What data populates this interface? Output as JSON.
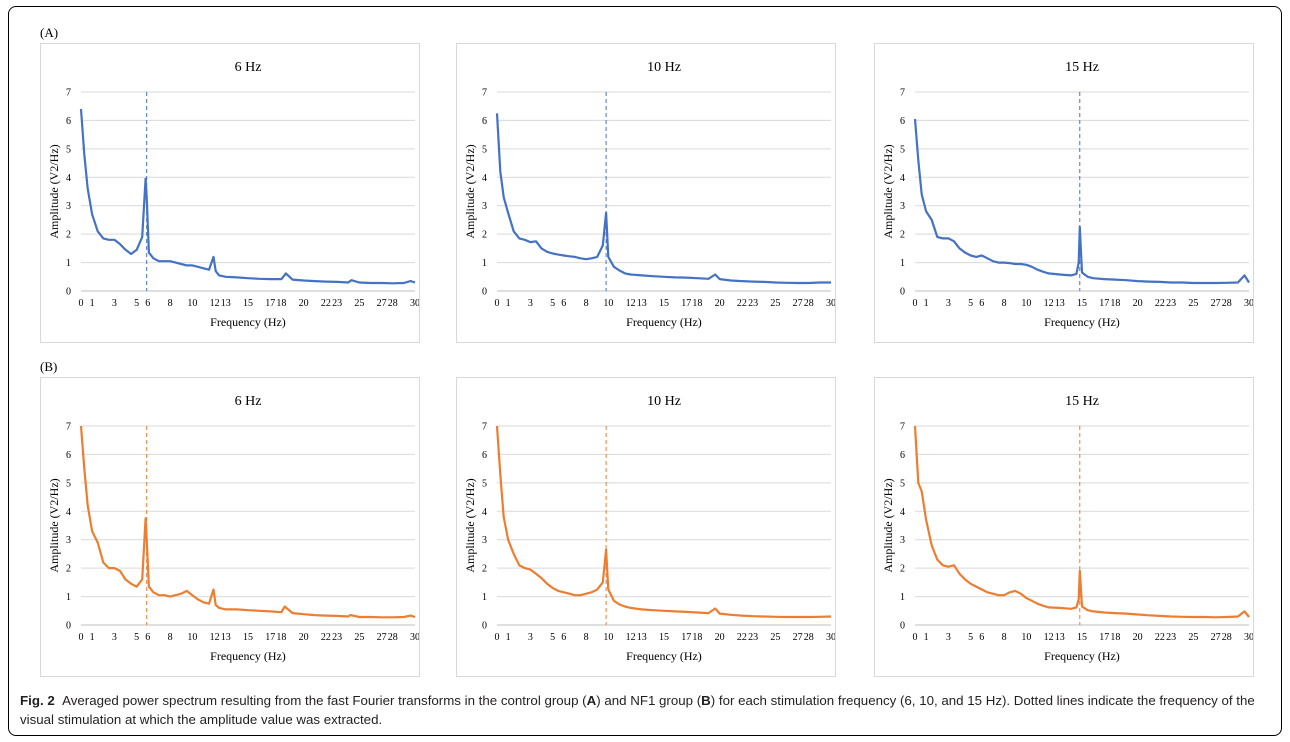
{
  "panel_labels": {
    "A": "(A)",
    "B": "(B)"
  },
  "caption": {
    "fig_label": "Fig. 2",
    "text_1": "Averaged power spectrum resulting from the fast Fourier transforms in the control group (",
    "bold_1": "A",
    "text_2": ") and NF1 group (",
    "bold_2": "B",
    "text_3": ") for each stimulation frequency (6, 10, and 15 Hz). Dotted lines indicate the frequency of the visual stimulation at which the amplitude value was extracted."
  },
  "chart_data": [
    {
      "id": "A-6",
      "type": "line",
      "title": "6 Hz",
      "xlabel": "Frequency (Hz)",
      "ylabel": "Amplitude (V2/Hz)",
      "xlim": [
        0,
        30
      ],
      "ylim": [
        0,
        7
      ],
      "xticks": [
        "0",
        "1",
        "3",
        "5",
        "6",
        "8",
        "10",
        "12",
        "13",
        "15",
        "17",
        "18",
        "20",
        "22",
        "23",
        "25",
        "27",
        "28",
        "30"
      ],
      "yticks": [
        "0",
        "1",
        "2",
        "3",
        "4",
        "5",
        "6",
        "7"
      ],
      "grid": true,
      "color": "#4472c4",
      "marker_x": 5.9,
      "x": [
        0,
        0.3,
        0.6,
        1,
        1.5,
        2,
        2.5,
        3,
        3.5,
        4,
        4.5,
        5,
        5.5,
        5.8,
        5.9,
        6.1,
        6.5,
        7,
        7.5,
        8,
        8.5,
        9,
        9.5,
        10,
        10.5,
        11,
        11.5,
        11.9,
        12.1,
        12.4,
        13,
        14,
        15,
        16,
        17,
        18,
        18.4,
        19,
        20,
        21,
        22,
        23,
        24,
        24.3,
        25,
        26,
        27,
        28,
        29,
        29.6,
        30
      ],
      "y": [
        6.4,
        4.8,
        3.6,
        2.7,
        2.1,
        1.85,
        1.8,
        1.8,
        1.65,
        1.45,
        1.3,
        1.45,
        1.9,
        3.95,
        3.3,
        1.35,
        1.15,
        1.05,
        1.05,
        1.05,
        1.0,
        0.95,
        0.9,
        0.9,
        0.85,
        0.8,
        0.75,
        1.2,
        0.7,
        0.55,
        0.5,
        0.48,
        0.45,
        0.43,
        0.42,
        0.42,
        0.62,
        0.4,
        0.37,
        0.35,
        0.33,
        0.32,
        0.3,
        0.38,
        0.3,
        0.28,
        0.28,
        0.27,
        0.28,
        0.35,
        0.3
      ]
    },
    {
      "id": "A-10",
      "type": "line",
      "title": "10 Hz",
      "xlabel": "Frequency (Hz)",
      "ylabel": "Amplitude (V2/Hz)",
      "xlim": [
        0,
        30
      ],
      "ylim": [
        0,
        7
      ],
      "xticks": [
        "0",
        "1",
        "3",
        "5",
        "6",
        "8",
        "10",
        "12",
        "13",
        "15",
        "17",
        "18",
        "20",
        "22",
        "23",
        "25",
        "27",
        "28",
        "30"
      ],
      "yticks": [
        "0",
        "1",
        "2",
        "3",
        "4",
        "5",
        "6",
        "7"
      ],
      "grid": true,
      "color": "#4472c4",
      "marker_x": 9.8,
      "x": [
        0,
        0.3,
        0.6,
        1,
        1.5,
        2,
        2.5,
        3,
        3.5,
        4,
        4.5,
        5,
        5.5,
        6,
        6.5,
        7,
        7.5,
        8,
        8.5,
        9,
        9.5,
        9.8,
        10,
        10.5,
        11,
        11.5,
        12,
        13,
        14,
        15,
        16,
        17,
        18,
        19,
        19.6,
        20,
        21,
        22,
        23,
        24,
        25,
        26,
        27,
        28,
        29,
        30
      ],
      "y": [
        6.25,
        4.2,
        3.3,
        2.75,
        2.1,
        1.85,
        1.8,
        1.72,
        1.75,
        1.5,
        1.38,
        1.32,
        1.28,
        1.25,
        1.22,
        1.2,
        1.15,
        1.12,
        1.15,
        1.2,
        1.6,
        2.75,
        1.2,
        0.85,
        0.72,
        0.62,
        0.58,
        0.55,
        0.52,
        0.5,
        0.48,
        0.47,
        0.45,
        0.43,
        0.58,
        0.42,
        0.37,
        0.35,
        0.33,
        0.32,
        0.3,
        0.29,
        0.28,
        0.28,
        0.3,
        0.3
      ]
    },
    {
      "id": "A-15",
      "type": "line",
      "title": "15 Hz",
      "xlabel": "Frequency (Hz)",
      "ylabel": "Amplitude (V2/Hz)",
      "xlim": [
        0,
        30
      ],
      "ylim": [
        0,
        7
      ],
      "xticks": [
        "0",
        "1",
        "3",
        "5",
        "6",
        "8",
        "10",
        "12",
        "13",
        "15",
        "17",
        "18",
        "20",
        "22",
        "23",
        "25",
        "27",
        "28",
        "30"
      ],
      "yticks": [
        "0",
        "1",
        "2",
        "3",
        "4",
        "5",
        "6",
        "7"
      ],
      "grid": true,
      "color": "#4472c4",
      "marker_x": 14.8,
      "x": [
        0,
        0.3,
        0.6,
        1,
        1.5,
        2,
        2.5,
        3,
        3.5,
        4,
        4.5,
        5,
        5.5,
        6,
        6.5,
        7,
        7.5,
        8,
        8.5,
        9,
        9.5,
        10,
        10.5,
        11,
        11.5,
        12,
        13,
        14,
        14.5,
        14.7,
        14.8,
        15,
        15.5,
        16,
        17,
        18,
        19,
        20,
        21,
        22,
        23,
        24,
        25,
        26,
        27,
        28,
        29,
        29.6,
        30
      ],
      "y": [
        6.05,
        4.6,
        3.4,
        2.8,
        2.5,
        1.9,
        1.85,
        1.85,
        1.75,
        1.5,
        1.35,
        1.25,
        1.2,
        1.25,
        1.15,
        1.05,
        1.0,
        1.0,
        0.98,
        0.95,
        0.95,
        0.92,
        0.85,
        0.75,
        0.68,
        0.62,
        0.58,
        0.55,
        0.6,
        1.0,
        2.25,
        0.65,
        0.5,
        0.45,
        0.42,
        0.4,
        0.38,
        0.35,
        0.33,
        0.32,
        0.3,
        0.3,
        0.28,
        0.28,
        0.28,
        0.29,
        0.3,
        0.55,
        0.3
      ]
    },
    {
      "id": "B-6",
      "type": "line",
      "title": "6 Hz",
      "xlabel": "Frequency (Hz)",
      "ylabel": "Amplitude (V2/Hz)",
      "xlim": [
        0,
        30
      ],
      "ylim": [
        0,
        7
      ],
      "xticks": [
        "0",
        "1",
        "3",
        "5",
        "6",
        "8",
        "10",
        "12",
        "13",
        "15",
        "17",
        "18",
        "20",
        "22",
        "23",
        "25",
        "27",
        "28",
        "30"
      ],
      "yticks": [
        "0",
        "1",
        "2",
        "3",
        "4",
        "5",
        "6",
        "7"
      ],
      "grid": true,
      "color": "#ed7d31",
      "marker_x": 5.9,
      "x": [
        0,
        0.3,
        0.6,
        1,
        1.5,
        2,
        2.5,
        3,
        3.5,
        4,
        4.5,
        5,
        5.5,
        5.8,
        5.9,
        6.1,
        6.5,
        7,
        7.5,
        8,
        8.5,
        9,
        9.5,
        10,
        10.5,
        11,
        11.5,
        11.9,
        12.1,
        12.4,
        13,
        14,
        15,
        16,
        17,
        18,
        18.3,
        19,
        20,
        21,
        22,
        23,
        24,
        24.2,
        25,
        26,
        27,
        28,
        29,
        29.6,
        30
      ],
      "y": [
        7.0,
        5.5,
        4.2,
        3.3,
        2.9,
        2.2,
        2.0,
        2.0,
        1.9,
        1.6,
        1.45,
        1.35,
        1.6,
        3.75,
        3.0,
        1.35,
        1.15,
        1.05,
        1.05,
        1.0,
        1.05,
        1.1,
        1.2,
        1.05,
        0.9,
        0.8,
        0.75,
        1.25,
        0.7,
        0.6,
        0.55,
        0.55,
        0.52,
        0.5,
        0.48,
        0.45,
        0.65,
        0.42,
        0.38,
        0.35,
        0.33,
        0.32,
        0.3,
        0.35,
        0.28,
        0.28,
        0.27,
        0.27,
        0.28,
        0.33,
        0.28
      ]
    },
    {
      "id": "B-10",
      "type": "line",
      "title": "10 Hz",
      "xlabel": "Frequency (Hz)",
      "ylabel": "Amplitude (V2/Hz)",
      "xlim": [
        0,
        30
      ],
      "ylim": [
        0,
        7
      ],
      "xticks": [
        "0",
        "1",
        "3",
        "5",
        "6",
        "8",
        "10",
        "12",
        "13",
        "15",
        "17",
        "18",
        "20",
        "22",
        "23",
        "25",
        "27",
        "28",
        "30"
      ],
      "yticks": [
        "0",
        "1",
        "2",
        "3",
        "4",
        "5",
        "6",
        "7"
      ],
      "grid": true,
      "color": "#ed7d31",
      "marker_x": 9.8,
      "x": [
        0,
        0.3,
        0.6,
        1,
        1.5,
        2,
        2.5,
        3,
        3.5,
        4,
        4.5,
        5,
        5.5,
        6,
        6.5,
        7,
        7.5,
        8,
        8.5,
        9,
        9.5,
        9.8,
        10,
        10.5,
        11,
        11.5,
        12,
        13,
        14,
        15,
        16,
        17,
        18,
        19,
        19.6,
        20,
        21,
        22,
        23,
        24,
        25,
        26,
        27,
        28,
        29,
        30
      ],
      "y": [
        7.0,
        5.3,
        3.8,
        3.0,
        2.5,
        2.1,
        2.0,
        1.95,
        1.8,
        1.65,
        1.45,
        1.3,
        1.2,
        1.15,
        1.1,
        1.05,
        1.05,
        1.1,
        1.15,
        1.25,
        1.5,
        2.65,
        1.25,
        0.85,
        0.72,
        0.65,
        0.6,
        0.55,
        0.52,
        0.5,
        0.48,
        0.46,
        0.44,
        0.42,
        0.58,
        0.4,
        0.36,
        0.33,
        0.31,
        0.3,
        0.29,
        0.28,
        0.28,
        0.28,
        0.29,
        0.3
      ]
    },
    {
      "id": "B-15",
      "type": "line",
      "title": "15 Hz",
      "xlabel": "Frequency (Hz)",
      "ylabel": "Amplitude (V2/Hz)",
      "xlim": [
        0,
        30
      ],
      "ylim": [
        0,
        7
      ],
      "xticks": [
        "0",
        "1",
        "3",
        "5",
        "6",
        "8",
        "10",
        "12",
        "13",
        "15",
        "17",
        "18",
        "20",
        "22",
        "23",
        "25",
        "27",
        "28",
        "30"
      ],
      "yticks": [
        "0",
        "1",
        "2",
        "3",
        "4",
        "5",
        "6",
        "7"
      ],
      "grid": true,
      "color": "#ed7d31",
      "marker_x": 14.8,
      "x": [
        0,
        0.3,
        0.6,
        1,
        1.5,
        2,
        2.5,
        3,
        3.5,
        4,
        4.5,
        5,
        5.5,
        6,
        6.5,
        7,
        7.5,
        8,
        8.5,
        9,
        9.5,
        10,
        10.5,
        11,
        11.5,
        12,
        13,
        14,
        14.5,
        14.7,
        14.8,
        15,
        15.5,
        16,
        17,
        18,
        19,
        20,
        21,
        22,
        23,
        24,
        25,
        26,
        27,
        28,
        29,
        29.6,
        30
      ],
      "y": [
        7.0,
        5.0,
        4.7,
        3.7,
        2.8,
        2.3,
        2.1,
        2.05,
        2.1,
        1.8,
        1.6,
        1.45,
        1.35,
        1.25,
        1.15,
        1.1,
        1.05,
        1.05,
        1.15,
        1.2,
        1.1,
        0.95,
        0.85,
        0.75,
        0.68,
        0.62,
        0.6,
        0.57,
        0.62,
        0.9,
        1.9,
        0.65,
        0.52,
        0.48,
        0.44,
        0.42,
        0.4,
        0.37,
        0.34,
        0.32,
        0.3,
        0.29,
        0.28,
        0.28,
        0.27,
        0.28,
        0.3,
        0.48,
        0.28
      ]
    }
  ]
}
